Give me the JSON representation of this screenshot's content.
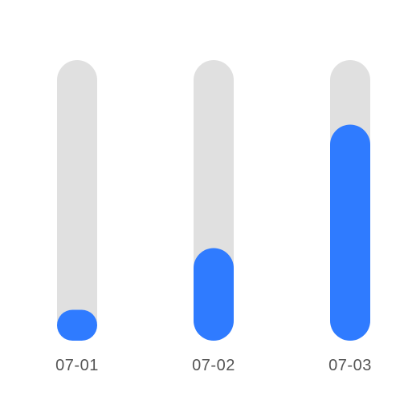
{
  "chart_data": {
    "type": "bar",
    "categories": [
      "07-01",
      "07-02",
      "07-03"
    ],
    "values": [
      11,
      33,
      77
    ],
    "ylim": [
      0,
      100
    ],
    "grid": false,
    "legend": "none",
    "title": "",
    "xlabel": "",
    "ylabel": ""
  },
  "colors": {
    "bar_fill": "#2f7bff",
    "track": "#e0e0e0",
    "label": "#555555",
    "background": "#ffffff"
  }
}
